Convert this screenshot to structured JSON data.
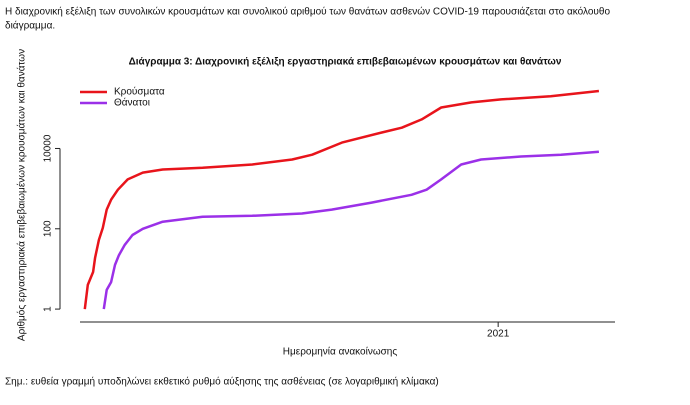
{
  "intro": "Η διαχρονική εξέλιξη των συνολικών κρουσμάτων και συνολικού αριθμού των θανάτων ασθενών COVID-19 παρουσιάζεται στο ακόλουθο",
  "intro_cont": "διάγραμμα.",
  "chart_data": {
    "type": "line",
    "title": "Διάγραμμα 3: Διαχρονική εξέλιξη εργαστηριακά επιβεβαιωμένων κρουσμάτων και θανάτων",
    "xlabel": "Ημερομηνία ανακοίνωσης",
    "ylabel": "Αριθμός εργαστηριακά επιβεβαιωμένων κρουσμάτων και θανάτων",
    "xlim": [
      2020.1,
      2021.24
    ],
    "xticks": [
      2021
    ],
    "ylim": [
      0.6,
      900000
    ],
    "yticks": [
      1,
      100,
      10000
    ],
    "ylog": true,
    "legend": "top-left",
    "series": [
      {
        "name": "Κρούσματα",
        "color": "#e8141b",
        "x": [
          2020.151,
          2020.157,
          2020.168,
          2020.172,
          2020.18,
          2020.188,
          2020.196,
          2020.205,
          2020.219,
          2020.239,
          2020.27,
          2020.311,
          2020.393,
          2020.495,
          2020.577,
          2020.618,
          2020.679,
          2020.761,
          2020.802,
          2020.843,
          2020.883,
          2020.945,
          2021.006,
          2021.108,
          2021.207
        ],
        "values": [
          1,
          4,
          8.4,
          19,
          53,
          105,
          300,
          530,
          940,
          1700,
          2500,
          3000,
          3300,
          4000,
          5300,
          7000,
          14000,
          25000,
          33000,
          53000,
          105000,
          140000,
          167000,
          200000,
          270000
        ]
      },
      {
        "name": "Θάνατοι",
        "color": "#9b30e8",
        "x": [
          2020.19,
          2020.196,
          2020.205,
          2020.213,
          2020.221,
          2020.233,
          2020.249,
          2020.27,
          2020.311,
          2020.393,
          2020.495,
          2020.597,
          2020.658,
          2020.74,
          2020.822,
          2020.853,
          2020.883,
          2020.924,
          2020.965,
          2021.047,
          2021.129,
          2021.207
        ],
        "values": [
          1,
          3,
          4.7,
          12.6,
          22,
          40,
          70,
          100,
          150,
          200,
          210,
          240,
          300,
          450,
          700,
          940,
          1700,
          4000,
          5300,
          6300,
          7000,
          8300
        ]
      }
    ]
  },
  "note": "Σημ.: ευθεία γραμμή υποδηλώνει εκθετικό ρυθμό αύξησης της ασθένειας (σε λογαριθμική κλίμακα)"
}
